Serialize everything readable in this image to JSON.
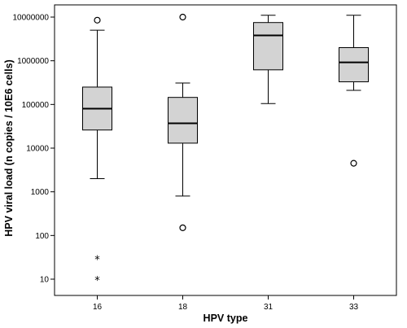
{
  "chart_data": {
    "type": "box",
    "xlabel": "HPV type",
    "ylabel": "HPV viral load (n copies / 10E6 cells)",
    "y_scale": "log",
    "ylim": [
      5,
      15000000
    ],
    "y_ticks": [
      10,
      100,
      1000,
      10000,
      100000,
      1000000,
      10000000
    ],
    "y_tick_labels": [
      "10",
      "100",
      "1000",
      "10000",
      "100000",
      "1000000",
      "10000000"
    ],
    "categories": [
      "16",
      "18",
      "31",
      "33"
    ],
    "boxes": [
      {
        "category": "16",
        "whisker_low": 2000,
        "q1": 26000,
        "median": 80000,
        "q3": 250000,
        "whisker_high": 5000000,
        "outliers": [
          8500000
        ],
        "extremes": [
          30,
          10
        ]
      },
      {
        "category": "18",
        "whisker_low": 800,
        "q1": 13000,
        "median": 37000,
        "q3": 145000,
        "whisker_high": 310000,
        "outliers": [
          10000000,
          150
        ],
        "extremes": []
      },
      {
        "category": "31",
        "whisker_low": 105000,
        "q1": 620000,
        "median": 3800000,
        "q3": 7500000,
        "whisker_high": 11000000,
        "outliers": [],
        "extremes": []
      },
      {
        "category": "33",
        "whisker_low": 210000,
        "q1": 330000,
        "median": 920000,
        "q3": 2000000,
        "whisker_high": 11000000,
        "outliers": [
          4500
        ],
        "extremes": []
      }
    ],
    "box_fill": "#d3d3d3",
    "grid": false
  }
}
